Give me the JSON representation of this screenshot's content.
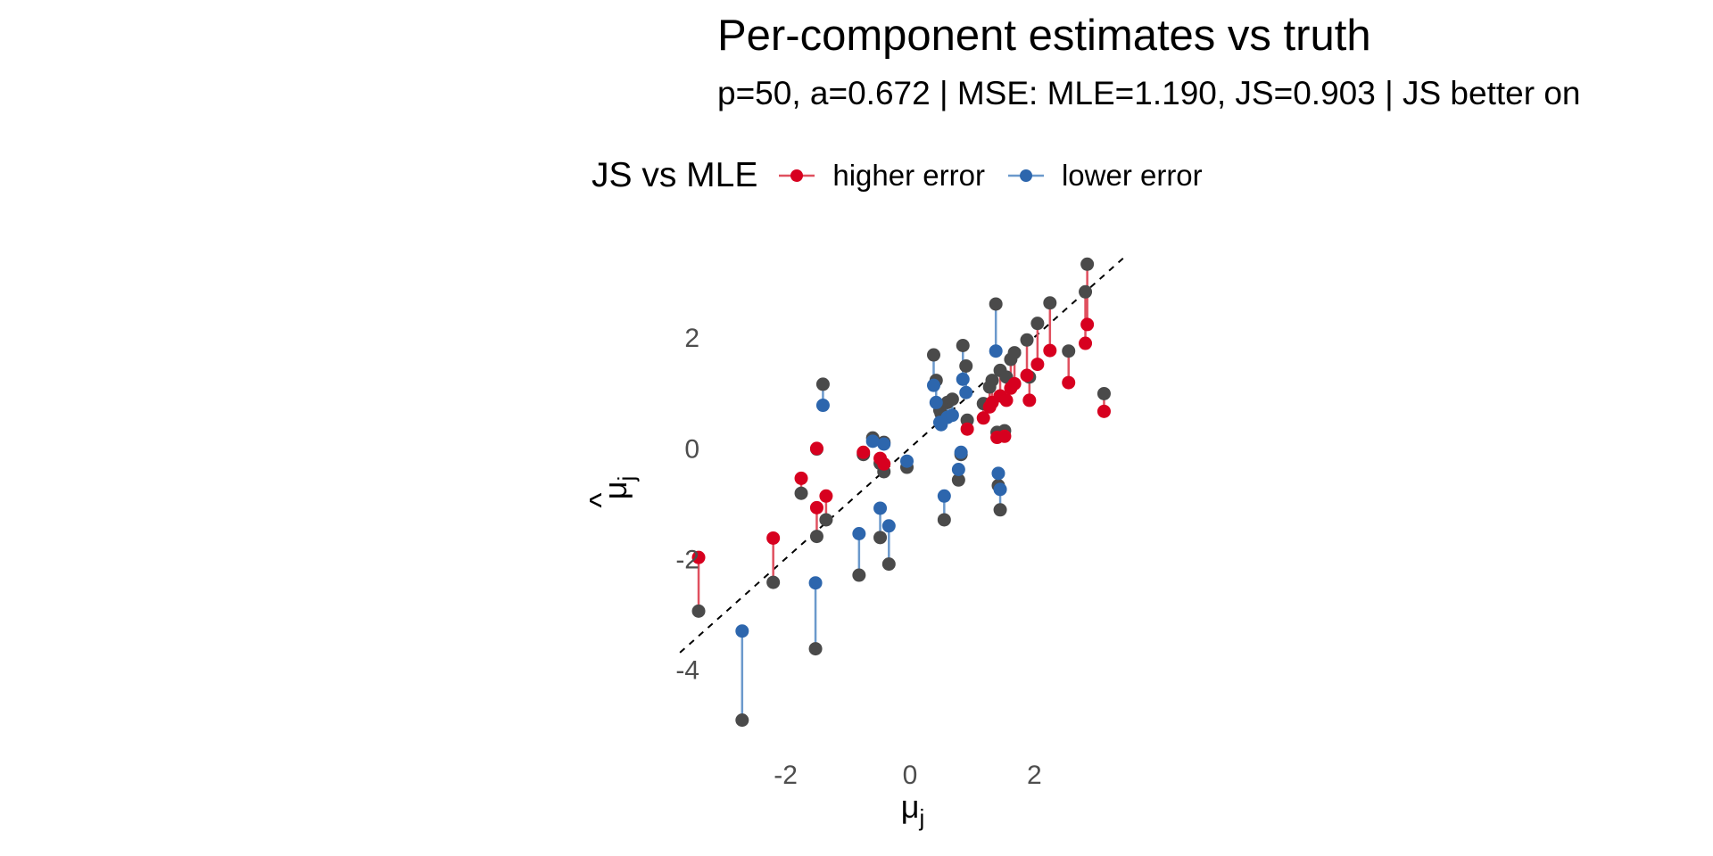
{
  "chart_data": {
    "type": "scatter",
    "title": "Per-component estimates vs truth",
    "subtitle": "p=50, a=0.672 | MSE: MLE=1.190, JS=0.903 | JS better on",
    "xlabel_base": "μ",
    "xlabel_sub": "j",
    "ylabel_base": "μ",
    "ylabel_hat": "^",
    "ylabel_sub": "j",
    "xlim": [
      -3.3,
      3.3
    ],
    "ylim": [
      -5.2,
      3.55
    ],
    "x_ticks": [
      -2,
      0,
      2
    ],
    "x_tick_labels": [
      "-2",
      "0",
      "2"
    ],
    "y_ticks": [
      -4,
      -2,
      0,
      2
    ],
    "y_tick_labels": [
      "-4",
      "-2",
      "0",
      "2"
    ],
    "grid": false,
    "reference_line": {
      "type": "identity",
      "style": "dashed",
      "color": "#000000",
      "x_range": [
        -3.7,
        3.5
      ]
    },
    "legend": {
      "title": "JS vs MLE",
      "position": "top",
      "entries": [
        {
          "label": "higher error",
          "color": "#d7001f"
        },
        {
          "label": "lower error",
          "color": "#2d66ad"
        }
      ]
    },
    "colors": {
      "mle": "#4a4a4a",
      "higher": "#d7001f",
      "lower": "#2d66ad",
      "segment_higher": "#e0505f",
      "segment_lower": "#6b99cc"
    },
    "point_fields": [
      "mu",
      "mle",
      "js",
      "js_vs_mle"
    ],
    "points": [
      [
        -3.4,
        -2.95,
        -1.98,
        "higher"
      ],
      [
        -2.2,
        -2.43,
        -1.63,
        "higher"
      ],
      [
        -1.5,
        -1.6,
        -1.08,
        "higher"
      ],
      [
        -1.35,
        -1.3,
        -0.87,
        "higher"
      ],
      [
        -1.75,
        -0.82,
        -0.55,
        "higher"
      ],
      [
        -1.5,
        -0.02,
        -0.01,
        "higher"
      ],
      [
        -0.75,
        -0.12,
        -0.08,
        "higher"
      ],
      [
        -0.48,
        -0.28,
        -0.19,
        "higher"
      ],
      [
        -0.42,
        -0.43,
        -0.29,
        "higher"
      ],
      [
        0.92,
        0.5,
        0.34,
        "higher"
      ],
      [
        1.18,
        0.8,
        0.54,
        "higher"
      ],
      [
        1.28,
        1.1,
        0.74,
        "higher"
      ],
      [
        1.32,
        1.22,
        0.82,
        "higher"
      ],
      [
        1.4,
        0.28,
        0.19,
        "higher"
      ],
      [
        1.52,
        0.31,
        0.21,
        "higher"
      ],
      [
        1.45,
        1.4,
        0.94,
        "higher"
      ],
      [
        1.55,
        1.28,
        0.86,
        "higher"
      ],
      [
        1.62,
        1.6,
        1.08,
        "higher"
      ],
      [
        1.68,
        1.72,
        1.16,
        "higher"
      ],
      [
        1.88,
        1.95,
        1.31,
        "higher"
      ],
      [
        1.92,
        1.28,
        0.86,
        "higher"
      ],
      [
        2.05,
        2.25,
        1.51,
        "higher"
      ],
      [
        2.25,
        2.62,
        1.76,
        "higher"
      ],
      [
        2.55,
        1.75,
        1.18,
        "higher"
      ],
      [
        2.82,
        2.82,
        1.89,
        "higher"
      ],
      [
        2.85,
        3.32,
        2.23,
        "higher"
      ],
      [
        3.12,
        0.98,
        0.66,
        "higher"
      ],
      [
        -2.7,
        -4.92,
        -3.31,
        "lower"
      ],
      [
        -1.52,
        -3.63,
        -2.44,
        "lower"
      ],
      [
        -1.4,
        1.15,
        0.77,
        "lower"
      ],
      [
        -0.82,
        -2.3,
        -1.55,
        "lower"
      ],
      [
        -0.6,
        0.18,
        0.12,
        "lower"
      ],
      [
        -0.48,
        -1.62,
        -1.09,
        "lower"
      ],
      [
        -0.42,
        0.1,
        0.07,
        "lower"
      ],
      [
        -0.34,
        -2.1,
        -1.41,
        "lower"
      ],
      [
        -0.05,
        -0.35,
        -0.24,
        "lower"
      ],
      [
        0.38,
        1.68,
        1.13,
        "lower"
      ],
      [
        0.42,
        1.22,
        0.82,
        "lower"
      ],
      [
        0.48,
        0.68,
        0.46,
        "lower"
      ],
      [
        0.55,
        -1.3,
        -0.87,
        "lower"
      ],
      [
        0.6,
        0.82,
        0.55,
        "lower"
      ],
      [
        0.68,
        0.88,
        0.59,
        "lower"
      ],
      [
        0.78,
        -0.58,
        -0.39,
        "lower"
      ],
      [
        0.82,
        -0.12,
        -0.08,
        "lower"
      ],
      [
        0.85,
        1.85,
        1.24,
        "lower"
      ],
      [
        0.9,
        1.48,
        1.0,
        "lower"
      ],
      [
        1.38,
        2.6,
        1.75,
        "lower"
      ],
      [
        1.42,
        -0.68,
        -0.46,
        "lower"
      ],
      [
        1.45,
        -1.12,
        -0.75,
        "lower"
      ],
      [
        0.5,
        0.62,
        0.42,
        "lower"
      ]
    ]
  }
}
